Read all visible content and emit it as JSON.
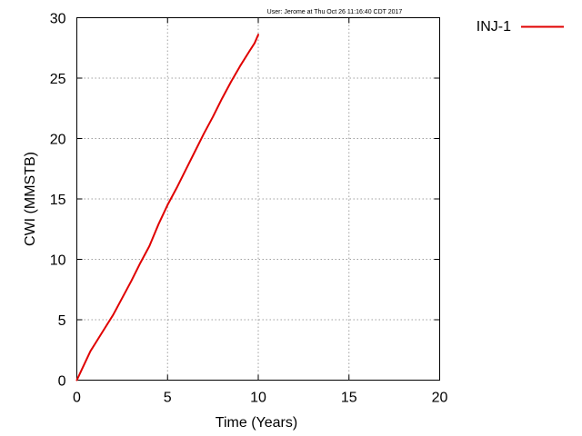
{
  "chart_data": {
    "type": "line",
    "timestamp": "User: Jerome at Thu Oct 26 11:16:40 CDT 2017",
    "xlabel": "Time (Years)",
    "ylabel": "CWI (MMSTB)",
    "xlim": [
      0,
      20
    ],
    "ylim": [
      0,
      30
    ],
    "x_ticks": [
      "0",
      "5",
      "10",
      "15",
      "20"
    ],
    "y_ticks": [
      "0",
      "5",
      "10",
      "15",
      "20",
      "25",
      "30"
    ],
    "grid": true,
    "legend_position": "top-right-outside",
    "series": [
      {
        "name": "INJ-1",
        "color": "#e00000",
        "x": [
          0,
          0.25,
          0.5,
          0.75,
          1.0,
          1.5,
          2.0,
          2.5,
          3.0,
          3.5,
          4.0,
          4.5,
          5.0,
          5.5,
          6.0,
          6.5,
          7.0,
          7.5,
          8.0,
          8.5,
          9.0,
          9.5,
          9.8,
          10.0
        ],
        "y": [
          0,
          0.8,
          1.6,
          2.4,
          3.0,
          4.2,
          5.4,
          6.8,
          8.2,
          9.7,
          11.1,
          12.9,
          14.5,
          15.9,
          17.4,
          18.9,
          20.4,
          21.8,
          23.3,
          24.7,
          26.0,
          27.2,
          27.9,
          28.6
        ]
      }
    ]
  }
}
